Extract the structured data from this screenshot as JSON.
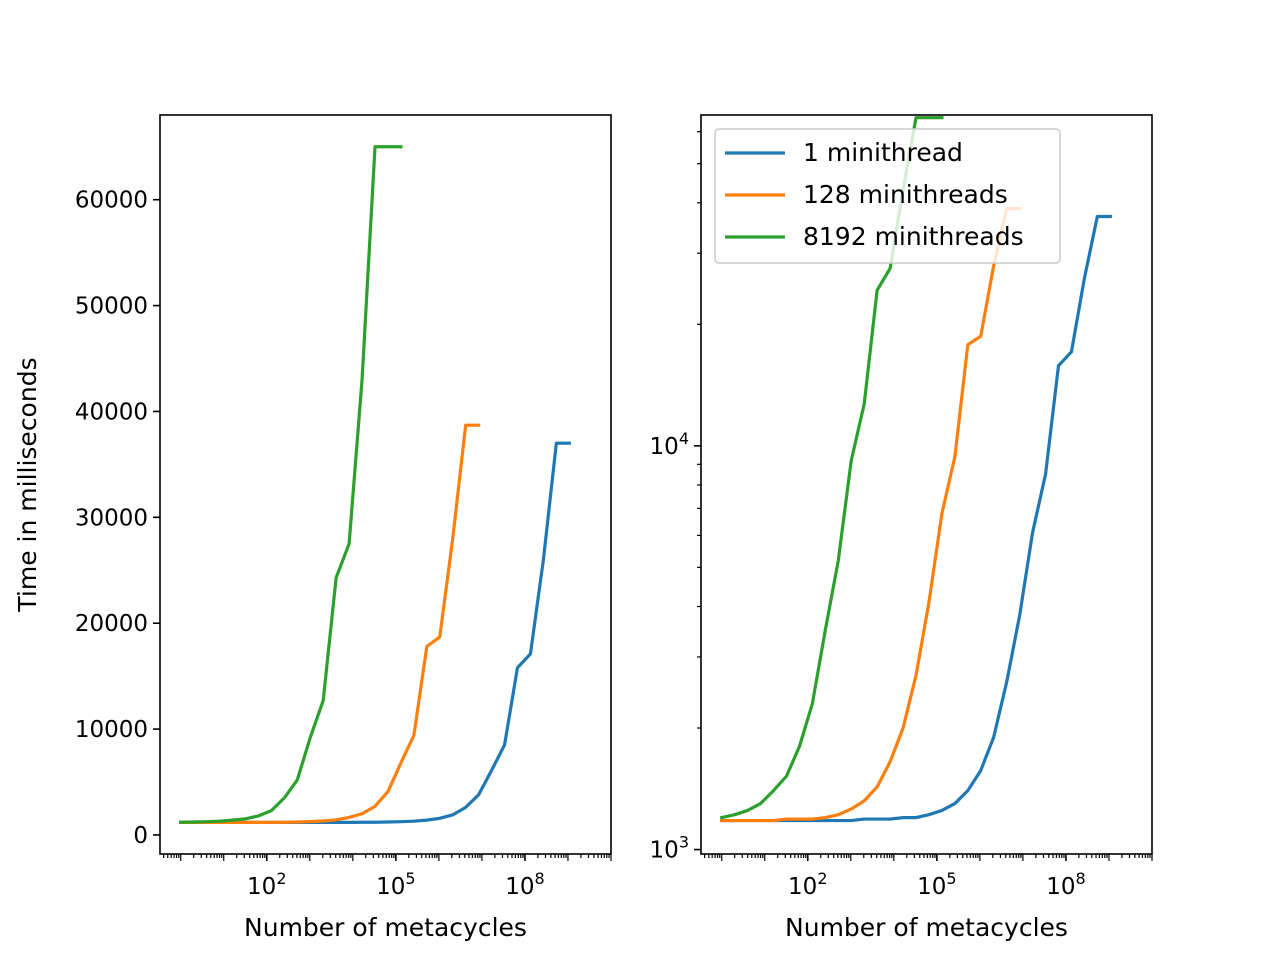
{
  "chart_data": [
    {
      "type": "line",
      "xscale": "log",
      "yscale": "linear",
      "xlabel": "Number of metacycles",
      "ylabel": "Time in milliseconds",
      "xlim": [
        0.33,
        10000000000
      ],
      "ylim": [
        -1800,
        68000
      ],
      "x_ticks": [
        {
          "value": 100,
          "label_base": "10",
          "label_exp": "2"
        },
        {
          "value": 100000,
          "label_base": "10",
          "label_exp": "5"
        },
        {
          "value": 100000000,
          "label_base": "10",
          "label_exp": "8"
        }
      ],
      "y_ticks": [
        {
          "value": 0,
          "label": "0"
        },
        {
          "value": 10000,
          "label": "10000"
        },
        {
          "value": 20000,
          "label": "20000"
        },
        {
          "value": 30000,
          "label": "30000"
        },
        {
          "value": 40000,
          "label": "40000"
        },
        {
          "value": 50000,
          "label": "50000"
        },
        {
          "value": 60000,
          "label": "60000"
        }
      ],
      "grid": false,
      "legend": null,
      "series_ref": "series"
    },
    {
      "type": "line",
      "xscale": "log",
      "yscale": "log",
      "xlabel": "Number of metacycles",
      "ylabel": "",
      "xlim": [
        0.33,
        10000000000
      ],
      "ylim": [
        975,
        66000
      ],
      "x_ticks": [
        {
          "value": 100,
          "label_base": "10",
          "label_exp": "2"
        },
        {
          "value": 100000,
          "label_base": "10",
          "label_exp": "5"
        },
        {
          "value": 100000000,
          "label_base": "10",
          "label_exp": "8"
        }
      ],
      "y_ticks": [
        {
          "value": 1000,
          "label_base": "10",
          "label_exp": "3"
        },
        {
          "value": 10000,
          "label_base": "10",
          "label_exp": "4"
        }
      ],
      "grid": false,
      "legend": "top-left",
      "series_ref": "series"
    }
  ],
  "series": [
    {
      "name": "1 minithread",
      "color": "#1f77b4",
      "x": [
        1,
        2,
        4,
        8,
        16,
        32,
        64,
        128,
        256,
        512,
        1024,
        2048,
        4096,
        8192,
        16384,
        32768,
        65536,
        131072,
        262144,
        524288,
        1048576,
        2097152,
        4194304,
        8388608,
        16777216,
        33554432,
        67108864,
        134217728,
        268435456,
        536870912,
        1073741824
      ],
      "y": [
        1180,
        1180,
        1180,
        1180,
        1180,
        1180,
        1180,
        1180,
        1180,
        1180,
        1180,
        1190,
        1190,
        1190,
        1200,
        1200,
        1220,
        1250,
        1300,
        1400,
        1570,
        1900,
        2600,
        3800,
        6100,
        8500,
        15800,
        17100,
        26000,
        37000,
        37000
      ]
    },
    {
      "name": "128 minithreads",
      "color": "#ff7f0e",
      "x": [
        1,
        2,
        4,
        8,
        16,
        32,
        64,
        128,
        256,
        512,
        1024,
        2048,
        4096,
        8192,
        16384,
        32768,
        65536,
        131072,
        262144,
        524288,
        1048576,
        2097152,
        4194304,
        8388608
      ],
      "y": [
        1180,
        1180,
        1180,
        1180,
        1180,
        1190,
        1190,
        1190,
        1200,
        1220,
        1260,
        1320,
        1430,
        1650,
        2000,
        2700,
        4100,
        6800,
        9400,
        17800,
        18700,
        28000,
        38700,
        38700
      ]
    },
    {
      "name": "8192 minithreads",
      "color": "#2ca02c",
      "x": [
        1,
        2,
        4,
        8,
        16,
        32,
        64,
        128,
        256,
        512,
        1024,
        2048,
        4096,
        8192,
        16384,
        32768,
        65536,
        131072
      ],
      "y": [
        1200,
        1220,
        1250,
        1300,
        1400,
        1520,
        1800,
        2300,
        3500,
        5200,
        9200,
        12700,
        24300,
        27500,
        43000,
        65000,
        65000,
        65000
      ]
    }
  ]
}
